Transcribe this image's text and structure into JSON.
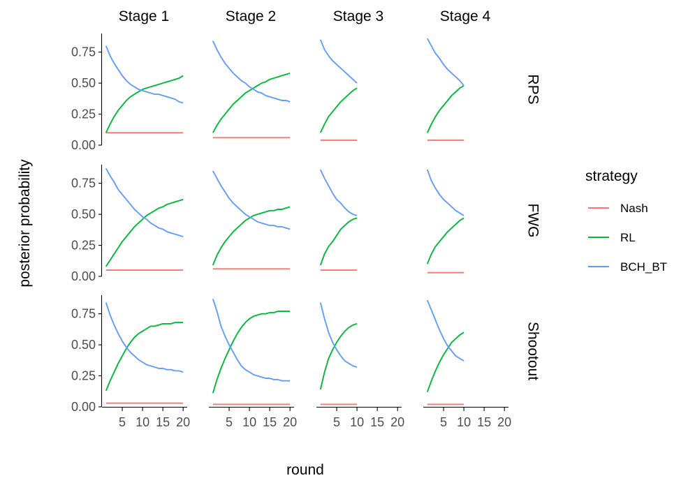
{
  "chart_data": {
    "type": "line",
    "title": "",
    "xlabel": "round",
    "ylabel": "posterior probability",
    "columns": [
      "Stage 1",
      "Stage 2",
      "Stage 3",
      "Stage 4"
    ],
    "rows": [
      "RPS",
      "FWG",
      "Shootout"
    ],
    "xlim": [
      0,
      21
    ],
    "ylim": [
      0,
      0.9
    ],
    "x_ticks": [
      5,
      10,
      15,
      20
    ],
    "x_tick_labels": [
      "5",
      "10",
      "15",
      "20"
    ],
    "y_ticks": [
      0,
      0.25,
      0.5,
      0.75
    ],
    "y_tick_labels": [
      "0.00",
      "0.25",
      "0.50",
      "0.75"
    ],
    "legend": {
      "title": "strategy",
      "entries": [
        {
          "name": "Nash",
          "color": "#F8766D"
        },
        {
          "name": "RL",
          "color": "#00BA38"
        },
        {
          "name": "BCH_BT",
          "color": "#619CFF"
        }
      ]
    },
    "panels": [
      {
        "row": "RPS",
        "col": "Stage 1",
        "x": [
          1,
          2,
          3,
          4,
          5,
          6,
          7,
          8,
          9,
          10,
          11,
          12,
          13,
          14,
          15,
          16,
          17,
          18,
          19,
          20
        ],
        "series": [
          {
            "name": "Nash",
            "values": [
              0.1,
              0.1,
              0.1,
              0.1,
              0.1,
              0.1,
              0.1,
              0.1,
              0.1,
              0.1,
              0.1,
              0.1,
              0.1,
              0.1,
              0.1,
              0.1,
              0.1,
              0.1,
              0.1,
              0.1
            ]
          },
          {
            "name": "RL",
            "values": [
              0.1,
              0.17,
              0.23,
              0.28,
              0.32,
              0.36,
              0.39,
              0.41,
              0.43,
              0.45,
              0.46,
              0.47,
              0.48,
              0.49,
              0.5,
              0.51,
              0.52,
              0.53,
              0.54,
              0.56
            ]
          },
          {
            "name": "BCH_BT",
            "values": [
              0.8,
              0.72,
              0.66,
              0.61,
              0.56,
              0.52,
              0.49,
              0.47,
              0.45,
              0.44,
              0.43,
              0.42,
              0.41,
              0.41,
              0.4,
              0.39,
              0.38,
              0.37,
              0.35,
              0.34
            ]
          }
        ]
      },
      {
        "row": "RPS",
        "col": "Stage 2",
        "x": [
          1,
          2,
          3,
          4,
          5,
          6,
          7,
          8,
          9,
          10,
          11,
          12,
          13,
          14,
          15,
          16,
          17,
          18,
          19,
          20
        ],
        "series": [
          {
            "name": "Nash",
            "values": [
              0.06,
              0.06,
              0.06,
              0.06,
              0.06,
              0.06,
              0.06,
              0.06,
              0.06,
              0.06,
              0.06,
              0.06,
              0.06,
              0.06,
              0.06,
              0.06,
              0.06,
              0.06,
              0.06,
              0.06
            ]
          },
          {
            "name": "RL",
            "values": [
              0.1,
              0.16,
              0.21,
              0.25,
              0.29,
              0.33,
              0.36,
              0.39,
              0.42,
              0.44,
              0.46,
              0.48,
              0.5,
              0.51,
              0.53,
              0.54,
              0.55,
              0.56,
              0.57,
              0.58
            ]
          },
          {
            "name": "BCH_BT",
            "values": [
              0.84,
              0.77,
              0.71,
              0.66,
              0.62,
              0.58,
              0.55,
              0.52,
              0.5,
              0.47,
              0.45,
              0.43,
              0.42,
              0.4,
              0.39,
              0.38,
              0.37,
              0.36,
              0.36,
              0.35
            ]
          }
        ]
      },
      {
        "row": "RPS",
        "col": "Stage 3",
        "x": [
          1,
          2,
          3,
          4,
          5,
          6,
          7,
          8,
          9,
          10
        ],
        "series": [
          {
            "name": "Nash",
            "values": [
              0.04,
              0.04,
              0.04,
              0.04,
              0.04,
              0.04,
              0.04,
              0.04,
              0.04,
              0.04
            ]
          },
          {
            "name": "RL",
            "values": [
              0.1,
              0.17,
              0.23,
              0.27,
              0.31,
              0.35,
              0.38,
              0.41,
              0.44,
              0.46
            ]
          },
          {
            "name": "BCH_BT",
            "values": [
              0.85,
              0.77,
              0.72,
              0.68,
              0.65,
              0.62,
              0.59,
              0.56,
              0.53,
              0.5
            ]
          }
        ]
      },
      {
        "row": "RPS",
        "col": "Stage 4",
        "x": [
          1,
          2,
          3,
          4,
          5,
          6,
          7,
          8,
          9,
          10
        ],
        "series": [
          {
            "name": "Nash",
            "values": [
              0.04,
              0.04,
              0.04,
              0.04,
              0.04,
              0.04,
              0.04,
              0.04,
              0.04,
              0.04
            ]
          },
          {
            "name": "RL",
            "values": [
              0.1,
              0.17,
              0.23,
              0.28,
              0.32,
              0.36,
              0.4,
              0.43,
              0.46,
              0.48
            ]
          },
          {
            "name": "BCH_BT",
            "values": [
              0.86,
              0.8,
              0.74,
              0.7,
              0.65,
              0.61,
              0.58,
              0.55,
              0.52,
              0.48
            ]
          }
        ]
      },
      {
        "row": "FWG",
        "col": "Stage 1",
        "x": [
          1,
          2,
          3,
          4,
          5,
          6,
          7,
          8,
          9,
          10,
          11,
          12,
          13,
          14,
          15,
          16,
          17,
          18,
          19,
          20
        ],
        "series": [
          {
            "name": "Nash",
            "values": [
              0.05,
              0.05,
              0.05,
              0.05,
              0.05,
              0.05,
              0.05,
              0.05,
              0.05,
              0.05,
              0.05,
              0.05,
              0.05,
              0.05,
              0.05,
              0.05,
              0.05,
              0.05,
              0.05,
              0.05
            ]
          },
          {
            "name": "RL",
            "values": [
              0.08,
              0.13,
              0.18,
              0.23,
              0.28,
              0.32,
              0.36,
              0.4,
              0.43,
              0.46,
              0.49,
              0.51,
              0.53,
              0.55,
              0.56,
              0.58,
              0.59,
              0.6,
              0.61,
              0.62
            ]
          },
          {
            "name": "BCH_BT",
            "values": [
              0.87,
              0.81,
              0.76,
              0.7,
              0.66,
              0.62,
              0.58,
              0.54,
              0.51,
              0.48,
              0.46,
              0.43,
              0.41,
              0.39,
              0.38,
              0.36,
              0.35,
              0.34,
              0.33,
              0.32
            ]
          }
        ]
      },
      {
        "row": "FWG",
        "col": "Stage 2",
        "x": [
          1,
          2,
          3,
          4,
          5,
          6,
          7,
          8,
          9,
          10,
          11,
          12,
          13,
          14,
          15,
          16,
          17,
          18,
          19,
          20
        ],
        "series": [
          {
            "name": "Nash",
            "values": [
              0.06,
              0.06,
              0.06,
              0.06,
              0.06,
              0.06,
              0.06,
              0.06,
              0.06,
              0.06,
              0.06,
              0.06,
              0.06,
              0.06,
              0.06,
              0.06,
              0.06,
              0.06,
              0.06,
              0.06
            ]
          },
          {
            "name": "RL",
            "values": [
              0.09,
              0.17,
              0.23,
              0.28,
              0.32,
              0.36,
              0.39,
              0.42,
              0.45,
              0.47,
              0.49,
              0.5,
              0.51,
              0.52,
              0.53,
              0.53,
              0.54,
              0.54,
              0.55,
              0.56
            ]
          },
          {
            "name": "BCH_BT",
            "values": [
              0.85,
              0.79,
              0.73,
              0.68,
              0.63,
              0.59,
              0.56,
              0.53,
              0.5,
              0.48,
              0.46,
              0.44,
              0.43,
              0.42,
              0.41,
              0.41,
              0.4,
              0.4,
              0.39,
              0.38
            ]
          }
        ]
      },
      {
        "row": "FWG",
        "col": "Stage 3",
        "x": [
          1,
          2,
          3,
          4,
          5,
          6,
          7,
          8,
          9,
          10
        ],
        "series": [
          {
            "name": "Nash",
            "values": [
              0.05,
              0.05,
              0.05,
              0.05,
              0.05,
              0.05,
              0.05,
              0.05,
              0.05,
              0.05
            ]
          },
          {
            "name": "RL",
            "values": [
              0.09,
              0.18,
              0.24,
              0.28,
              0.33,
              0.38,
              0.41,
              0.44,
              0.46,
              0.47
            ]
          },
          {
            "name": "BCH_BT",
            "values": [
              0.86,
              0.79,
              0.73,
              0.67,
              0.62,
              0.59,
              0.55,
              0.52,
              0.5,
              0.49
            ]
          }
        ]
      },
      {
        "row": "FWG",
        "col": "Stage 4",
        "x": [
          1,
          2,
          3,
          4,
          5,
          6,
          7,
          8,
          9,
          10
        ],
        "series": [
          {
            "name": "Nash",
            "values": [
              0.03,
              0.03,
              0.03,
              0.03,
              0.03,
              0.03,
              0.03,
              0.03,
              0.03,
              0.03
            ]
          },
          {
            "name": "RL",
            "values": [
              0.1,
              0.18,
              0.24,
              0.28,
              0.32,
              0.36,
              0.39,
              0.42,
              0.45,
              0.47
            ]
          },
          {
            "name": "BCH_BT",
            "values": [
              0.86,
              0.77,
              0.71,
              0.66,
              0.62,
              0.59,
              0.56,
              0.53,
              0.51,
              0.49
            ]
          }
        ]
      },
      {
        "row": "Shootout",
        "col": "Stage 1",
        "x": [
          1,
          2,
          3,
          4,
          5,
          6,
          7,
          8,
          9,
          10,
          11,
          12,
          13,
          14,
          15,
          16,
          17,
          18,
          19,
          20
        ],
        "series": [
          {
            "name": "Nash",
            "values": [
              0.03,
              0.03,
              0.03,
              0.03,
              0.03,
              0.03,
              0.03,
              0.03,
              0.03,
              0.03,
              0.03,
              0.03,
              0.03,
              0.03,
              0.03,
              0.03,
              0.03,
              0.03,
              0.03,
              0.03
            ]
          },
          {
            "name": "RL",
            "values": [
              0.13,
              0.21,
              0.28,
              0.35,
              0.41,
              0.47,
              0.52,
              0.56,
              0.59,
              0.61,
              0.63,
              0.65,
              0.65,
              0.66,
              0.67,
              0.67,
              0.67,
              0.68,
              0.68,
              0.68
            ]
          },
          {
            "name": "BCH_BT",
            "values": [
              0.84,
              0.74,
              0.66,
              0.59,
              0.53,
              0.48,
              0.44,
              0.41,
              0.38,
              0.36,
              0.34,
              0.33,
              0.32,
              0.31,
              0.31,
              0.3,
              0.3,
              0.29,
              0.29,
              0.28
            ]
          }
        ]
      },
      {
        "row": "Shootout",
        "col": "Stage 2",
        "x": [
          1,
          2,
          3,
          4,
          5,
          6,
          7,
          8,
          9,
          10,
          11,
          12,
          13,
          14,
          15,
          16,
          17,
          18,
          19,
          20
        ],
        "series": [
          {
            "name": "Nash",
            "values": [
              0.02,
              0.02,
              0.02,
              0.02,
              0.02,
              0.02,
              0.02,
              0.02,
              0.02,
              0.02,
              0.02,
              0.02,
              0.02,
              0.02,
              0.02,
              0.02,
              0.02,
              0.02,
              0.02,
              0.02
            ]
          },
          {
            "name": "RL",
            "values": [
              0.11,
              0.22,
              0.31,
              0.39,
              0.46,
              0.53,
              0.59,
              0.64,
              0.68,
              0.71,
              0.73,
              0.74,
              0.75,
              0.75,
              0.76,
              0.76,
              0.77,
              0.77,
              0.77,
              0.77
            ]
          },
          {
            "name": "BCH_BT",
            "values": [
              0.87,
              0.77,
              0.65,
              0.57,
              0.5,
              0.44,
              0.38,
              0.33,
              0.3,
              0.28,
              0.26,
              0.25,
              0.24,
              0.23,
              0.23,
              0.22,
              0.22,
              0.21,
              0.21,
              0.21
            ]
          }
        ]
      },
      {
        "row": "Shootout",
        "col": "Stage 3",
        "x": [
          1,
          2,
          3,
          4,
          5,
          6,
          7,
          8,
          9,
          10
        ],
        "series": [
          {
            "name": "Nash",
            "values": [
              0.02,
              0.02,
              0.02,
              0.02,
              0.02,
              0.02,
              0.02,
              0.02,
              0.02,
              0.02
            ]
          },
          {
            "name": "RL",
            "values": [
              0.14,
              0.28,
              0.39,
              0.46,
              0.52,
              0.57,
              0.61,
              0.64,
              0.66,
              0.67
            ]
          },
          {
            "name": "BCH_BT",
            "values": [
              0.84,
              0.71,
              0.6,
              0.52,
              0.46,
              0.41,
              0.37,
              0.35,
              0.33,
              0.32
            ]
          }
        ]
      },
      {
        "row": "Shootout",
        "col": "Stage 4",
        "x": [
          1,
          2,
          3,
          4,
          5,
          6,
          7,
          8,
          9,
          10
        ],
        "series": [
          {
            "name": "Nash",
            "values": [
              0.02,
              0.02,
              0.02,
              0.02,
              0.02,
              0.02,
              0.02,
              0.02,
              0.02,
              0.02
            ]
          },
          {
            "name": "RL",
            "values": [
              0.12,
              0.21,
              0.29,
              0.36,
              0.42,
              0.47,
              0.52,
              0.55,
              0.58,
              0.6
            ]
          },
          {
            "name": "BCH_BT",
            "values": [
              0.86,
              0.78,
              0.7,
              0.62,
              0.55,
              0.49,
              0.45,
              0.41,
              0.39,
              0.37
            ]
          }
        ]
      }
    ]
  }
}
